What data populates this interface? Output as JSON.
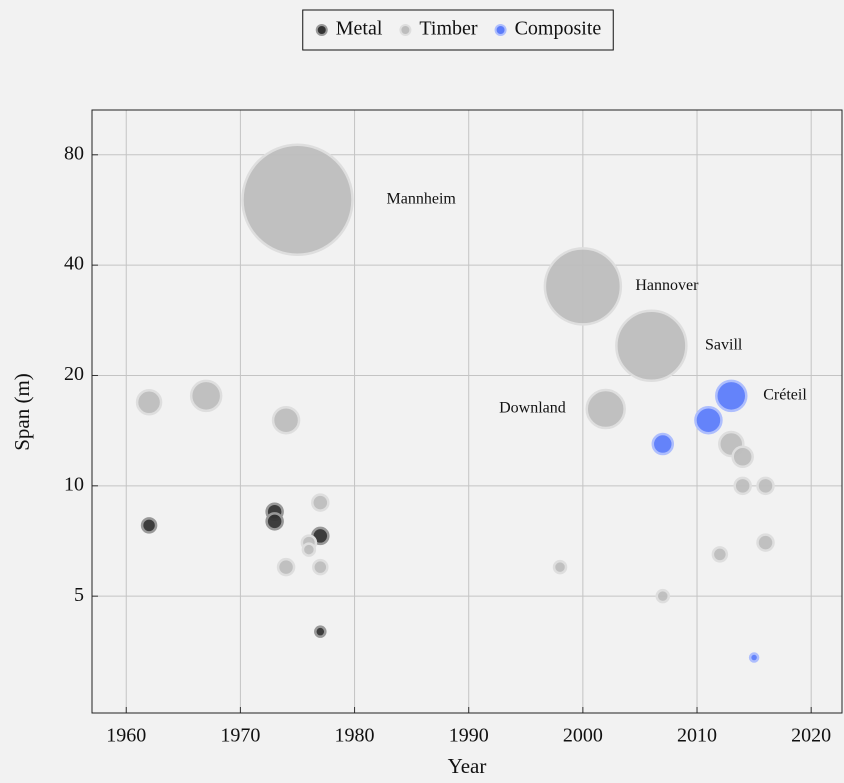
{
  "chart_data": {
    "type": "scatter",
    "x_label": "Year",
    "y_label": "Span (m)",
    "xlim": [
      1957,
      2022.7
    ],
    "ylim": [
      2.4,
      106
    ],
    "xticks": [
      1960,
      1970,
      1980,
      1990,
      2000,
      2010,
      2020
    ],
    "yticks": [
      5,
      10,
      20,
      40,
      80
    ],
    "log_y": true,
    "grid": true,
    "legend": "top",
    "series": [
      {
        "name": "Metal",
        "color": "#333333",
        "x": [
          1962,
          1973,
          1973,
          1977,
          1977
        ],
        "values": [
          7.8,
          8.5,
          8.0,
          7.3,
          4.0
        ],
        "sizes": [
          49,
          64,
          64,
          64,
          25
        ]
      },
      {
        "name": "Timber",
        "color": "#bdbdbd",
        "x": [
          1962,
          1967,
          1974,
          1975,
          1974,
          1976,
          1976,
          1977,
          1977,
          1998,
          2000,
          2002,
          2006,
          2007,
          2012,
          2013,
          2014,
          2014,
          2016,
          2016
        ],
        "values": [
          16.9,
          17.6,
          15.1,
          60.3,
          6.0,
          7.0,
          6.7,
          9.0,
          6.0,
          6.0,
          35,
          16.2,
          24.1,
          5.0,
          6.5,
          13.0,
          12.0,
          10,
          10,
          7.0
        ],
        "sizes": [
          144,
          225,
          169,
          3025,
          64,
          49,
          36,
          64,
          49,
          36,
          1444,
          361,
          1225,
          36,
          49,
          144,
          100,
          64,
          64,
          64
        ]
      },
      {
        "name": "Composite",
        "color": "#5c7cfa",
        "x": [
          2007,
          2011,
          2013,
          2015
        ],
        "values": [
          13.0,
          15.1,
          17.6,
          3.4
        ],
        "sizes": [
          100,
          169,
          225,
          16
        ]
      }
    ],
    "annotations": [
      {
        "text": "Mannheim",
        "x": 1982.8,
        "y": 60.3,
        "anchor": "start"
      },
      {
        "text": "Hannover",
        "x": 2004.6,
        "y": 35,
        "anchor": "start"
      },
      {
        "text": "Savill",
        "x": 2010.7,
        "y": 24.1,
        "anchor": "start"
      },
      {
        "text": "Créteil",
        "x": 2015.8,
        "y": 17.6,
        "anchor": "start"
      },
      {
        "text": "Downland",
        "x": 1998.5,
        "y": 16.2,
        "anchor": "end"
      }
    ]
  }
}
